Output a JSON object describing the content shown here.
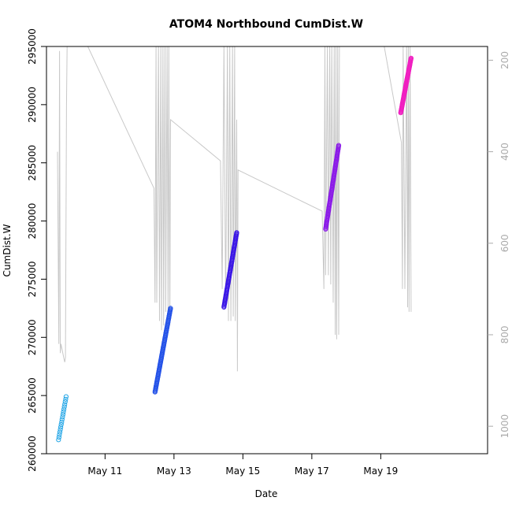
{
  "chart_data": {
    "type": "scatter",
    "title": "ATOM4 Northbound CumDist.W",
    "xlabel": "Date",
    "ylabel": "CumDist.W",
    "x_unit": "days (May 2021 day-of-month, fractional)",
    "xlim": [
      9.3,
      22.1
    ],
    "ylim": [
      260000,
      295000
    ],
    "x_ticks": [
      {
        "value": 11,
        "label": "May 11"
      },
      {
        "value": 13,
        "label": "May 13"
      },
      {
        "value": 15,
        "label": "May 15"
      },
      {
        "value": 17,
        "label": "May 17"
      },
      {
        "value": 19,
        "label": "May 19"
      }
    ],
    "y_ticks": [
      {
        "value": 260000,
        "label": "260000"
      },
      {
        "value": 265000,
        "label": "265000"
      },
      {
        "value": 270000,
        "label": "270000"
      },
      {
        "value": 275000,
        "label": "275000"
      },
      {
        "value": 280000,
        "label": "280000"
      },
      {
        "value": 285000,
        "label": "285000"
      },
      {
        "value": 290000,
        "label": "290000"
      },
      {
        "value": 295000,
        "label": "295000"
      }
    ],
    "secondary_axis": {
      "side": "right",
      "color": "#aaaaaa",
      "reversed": true,
      "lim": [
        1060,
        170
      ],
      "ticks": [
        {
          "value": 200,
          "label": "200"
        },
        {
          "value": 400,
          "label": "400"
        },
        {
          "value": 600,
          "label": "600"
        },
        {
          "value": 800,
          "label": "800"
        },
        {
          "value": 1000,
          "label": "1000"
        }
      ]
    },
    "depth_trace": {
      "color": "#c8c8c8",
      "points": [
        [
          9.62,
          400
        ],
        [
          9.66,
          820
        ],
        [
          9.68,
          180
        ],
        [
          9.7,
          840
        ],
        [
          9.72,
          820
        ],
        [
          9.8,
          850
        ],
        [
          9.83,
          860
        ],
        [
          9.85,
          850
        ],
        [
          9.88,
          300
        ],
        [
          9.9,
          170
        ],
        [
          10.5,
          170
        ],
        [
          12.42,
          480
        ],
        [
          12.45,
          730
        ],
        [
          12.48,
          170
        ],
        [
          12.5,
          730
        ],
        [
          12.55,
          170
        ],
        [
          12.58,
          770
        ],
        [
          12.62,
          170
        ],
        [
          12.64,
          790
        ],
        [
          12.68,
          170
        ],
        [
          12.7,
          780
        ],
        [
          12.74,
          170
        ],
        [
          12.76,
          750
        ],
        [
          12.8,
          170
        ],
        [
          12.83,
          760
        ],
        [
          12.85,
          170
        ],
        [
          12.88,
          780
        ],
        [
          12.9,
          330
        ],
        [
          14.35,
          420
        ],
        [
          14.4,
          700
        ],
        [
          14.45,
          170
        ],
        [
          14.5,
          740
        ],
        [
          14.55,
          170
        ],
        [
          14.58,
          770
        ],
        [
          14.62,
          170
        ],
        [
          14.65,
          770
        ],
        [
          14.7,
          170
        ],
        [
          14.72,
          760
        ],
        [
          14.76,
          170
        ],
        [
          14.78,
          770
        ],
        [
          14.82,
          330
        ],
        [
          14.84,
          880
        ],
        [
          14.86,
          440
        ],
        [
          17.3,
          530
        ],
        [
          17.35,
          700
        ],
        [
          17.38,
          170
        ],
        [
          17.4,
          670
        ],
        [
          17.45,
          170
        ],
        [
          17.48,
          670
        ],
        [
          17.52,
          170
        ],
        [
          17.55,
          690
        ],
        [
          17.58,
          170
        ],
        [
          17.62,
          730
        ],
        [
          17.65,
          170
        ],
        [
          17.68,
          800
        ],
        [
          17.7,
          170
        ],
        [
          17.72,
          810
        ],
        [
          17.75,
          170
        ],
        [
          17.78,
          800
        ],
        [
          17.8,
          170
        ],
        [
          19.1,
          170
        ],
        [
          19.6,
          380
        ],
        [
          19.63,
          700
        ],
        [
          19.65,
          170
        ],
        [
          19.7,
          700
        ],
        [
          19.75,
          170
        ],
        [
          19.78,
          740
        ],
        [
          19.8,
          170
        ],
        [
          19.82,
          750
        ],
        [
          19.85,
          170
        ],
        [
          19.88,
          750
        ]
      ]
    },
    "series": [
      {
        "name": "",
        "color": "#21a5e6",
        "x_start": 9.65,
        "x_end": 9.87,
        "y_start": 261200,
        "y_end": 264900,
        "points": 18
      },
      {
        "name": "",
        "color": "#2553e8",
        "x_start": 12.45,
        "x_end": 12.9,
        "y_start": 265300,
        "y_end": 272500,
        "points": 90
      },
      {
        "name": "",
        "color": "#3a16e6",
        "x_start": 14.45,
        "x_end": 14.82,
        "y_start": 272600,
        "y_end": 279000,
        "points": 75
      },
      {
        "name": "",
        "color": "#8b1ae8",
        "x_start": 17.4,
        "x_end": 17.78,
        "y_start": 279300,
        "y_end": 286500,
        "points": 80
      },
      {
        "name": "",
        "color": "#f01ec0",
        "x_start": 19.58,
        "x_end": 19.88,
        "y_start": 289300,
        "y_end": 294000,
        "points": 70
      }
    ],
    "grid": false,
    "legend": "none"
  }
}
